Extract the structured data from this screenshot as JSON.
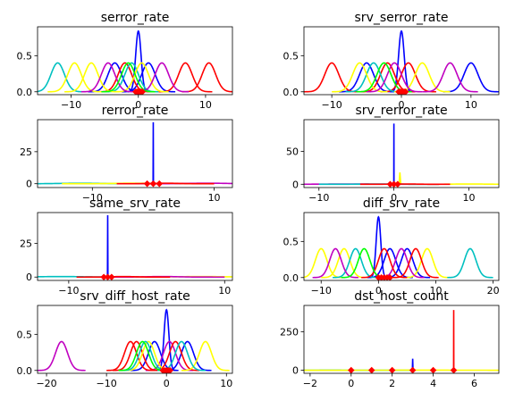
{
  "chart_data": [
    {
      "type": "line",
      "title": "serror_rate",
      "xlim": [
        -15,
        14
      ],
      "ylim": [
        -0.04,
        0.9
      ],
      "xticks": [
        -10,
        0,
        10
      ],
      "yticks": [
        0.0,
        0.5
      ],
      "xtick_labels": [
        "−10",
        "0",
        "10"
      ],
      "ytick_labels": [
        "0.0",
        "0.5"
      ],
      "series": [
        {
          "color": "#0000ff",
          "peaks": [
            {
              "mu": 0.0,
              "sigma": 0.4,
              "amp": 0.84
            },
            {
              "mu": -3.5,
              "sigma": 1.0,
              "amp": 0.4
            },
            {
              "mu": 1.5,
              "sigma": 1.0,
              "amp": 0.4
            }
          ]
        },
        {
          "color": "#ff0000",
          "peaks": [
            {
              "mu": 10.5,
              "sigma": 1.0,
              "amp": 0.4
            },
            {
              "mu": 7.0,
              "sigma": 1.0,
              "amp": 0.4
            },
            {
              "mu": -2.0,
              "sigma": 1.0,
              "amp": 0.4
            }
          ]
        },
        {
          "color": "#00c0c0",
          "peaks": [
            {
              "mu": -12.0,
              "sigma": 1.0,
              "amp": 0.4
            },
            {
              "mu": -1.0,
              "sigma": 1.0,
              "amp": 0.4
            }
          ]
        },
        {
          "color": "#ffff00",
          "peaks": [
            {
              "mu": -9.5,
              "sigma": 1.0,
              "amp": 0.4
            },
            {
              "mu": -7.0,
              "sigma": 1.0,
              "amp": 0.4
            },
            {
              "mu": 0.5,
              "sigma": 1.0,
              "amp": 0.4
            }
          ]
        },
        {
          "color": "#c000c0",
          "peaks": [
            {
              "mu": -4.5,
              "sigma": 1.0,
              "amp": 0.4
            },
            {
              "mu": 3.5,
              "sigma": 1.0,
              "amp": 0.4
            }
          ]
        },
        {
          "color": "#00ff00",
          "peaks": [
            {
              "mu": -1.5,
              "sigma": 1.0,
              "amp": 0.4
            }
          ]
        }
      ],
      "markers": [
        {
          "color": "#ff0000",
          "x": [
            -0.4,
            -0.2,
            0.0,
            0.2,
            0.4,
            0.6
          ],
          "y": 0.0
        }
      ]
    },
    {
      "type": "line",
      "title": "srv_serror_rate",
      "xlim": [
        -14,
        14
      ],
      "ylim": [
        -0.04,
        0.9
      ],
      "xticks": [
        -10,
        0,
        10
      ],
      "yticks": [
        0.0,
        0.5
      ],
      "xtick_labels": [
        "−10",
        "0",
        "10"
      ],
      "ytick_labels": [
        "0.0",
        "0.5"
      ],
      "series": [
        {
          "color": "#0000ff",
          "peaks": [
            {
              "mu": 0.0,
              "sigma": 0.4,
              "amp": 0.84
            },
            {
              "mu": 10.0,
              "sigma": 1.0,
              "amp": 0.4
            },
            {
              "mu": -5.0,
              "sigma": 1.0,
              "amp": 0.4
            }
          ]
        },
        {
          "color": "#ff0000",
          "peaks": [
            {
              "mu": -10.0,
              "sigma": 1.0,
              "amp": 0.4
            },
            {
              "mu": -2.0,
              "sigma": 1.0,
              "amp": 0.4
            },
            {
              "mu": 1.0,
              "sigma": 1.0,
              "amp": 0.4
            }
          ]
        },
        {
          "color": "#00c0c0",
          "peaks": [
            {
              "mu": -4.0,
              "sigma": 1.0,
              "amp": 0.4
            }
          ]
        },
        {
          "color": "#ffff00",
          "peaks": [
            {
              "mu": -6.0,
              "sigma": 1.0,
              "amp": 0.4
            },
            {
              "mu": 3.0,
              "sigma": 1.0,
              "amp": 0.4
            }
          ]
        },
        {
          "color": "#c000c0",
          "peaks": [
            {
              "mu": 7.0,
              "sigma": 1.0,
              "amp": 0.4
            },
            {
              "mu": -1.0,
              "sigma": 1.0,
              "amp": 0.4
            }
          ]
        },
        {
          "color": "#00ff00",
          "peaks": [
            {
              "mu": -2.5,
              "sigma": 1.0,
              "amp": 0.4
            }
          ]
        }
      ],
      "markers": [
        {
          "color": "#ff0000",
          "x": [
            -0.4,
            -0.2,
            0.0,
            0.2,
            0.4,
            0.6
          ],
          "y": 0.0
        }
      ]
    },
    {
      "type": "line",
      "title": "rerror_rate",
      "xlim": [
        -19,
        13
      ],
      "ylim": [
        -3,
        50
      ],
      "xticks": [
        -10,
        10
      ],
      "yticks": [
        0,
        25
      ],
      "xtick_labels": [
        "−10",
        "10"
      ],
      "ytick_labels": [
        "0",
        "25"
      ],
      "series": [
        {
          "color": "#0000ff",
          "peaks": [
            {
              "mu": 0.0,
              "sigma": 0.008,
              "amp": 48
            }
          ]
        },
        {
          "color": "#00c0c0",
          "peaks": [
            {
              "mu": -12.0,
              "sigma": 3.0,
              "amp": 0.4
            }
          ]
        },
        {
          "color": "#ffff00",
          "peaks": [
            {
              "mu": -3.0,
              "sigma": 3.0,
              "amp": 0.4
            }
          ]
        },
        {
          "color": "#c000c0",
          "peaks": [
            {
              "mu": 9.0,
              "sigma": 3.0,
              "amp": 0.4
            }
          ]
        },
        {
          "color": "#ff0000",
          "peaks": [
            {
              "mu": 2.0,
              "sigma": 2.0,
              "amp": 0.4
            }
          ]
        }
      ],
      "markers": [
        {
          "color": "#ff0000",
          "x": [
            -1.0,
            0.0,
            1.0
          ],
          "y": 0.0
        }
      ]
    },
    {
      "type": "line",
      "title": "srv_rerror_rate",
      "xlim": [
        -12,
        14
      ],
      "ylim": [
        -5,
        98
      ],
      "xticks": [
        -10,
        0,
        10
      ],
      "yticks": [
        0,
        50
      ],
      "xtick_labels": [
        "−10",
        "0",
        "10"
      ],
      "ytick_labels": [
        "0",
        "50"
      ],
      "series": [
        {
          "color": "#0000ff",
          "peaks": [
            {
              "mu": 0.0,
              "sigma": 0.004,
              "amp": 92
            }
          ]
        },
        {
          "color": "#ffff00",
          "peaks": [
            {
              "mu": 0.8,
              "sigma": 0.03,
              "amp": 18
            },
            {
              "mu": 10.0,
              "sigma": 2.0,
              "amp": 0.4
            }
          ]
        },
        {
          "color": "#c000c0",
          "peaks": [
            {
              "mu": -6.0,
              "sigma": 3.0,
              "amp": 0.4
            }
          ]
        },
        {
          "color": "#00c0c0",
          "peaks": [
            {
              "mu": -2.0,
              "sigma": 2.0,
              "amp": 0.4
            }
          ]
        },
        {
          "color": "#ff0000",
          "peaks": [
            {
              "mu": 1.5,
              "sigma": 1.5,
              "amp": 0.4
            }
          ]
        }
      ],
      "markers": [
        {
          "color": "#ff0000",
          "x": [
            -0.5,
            0.0,
            0.5
          ],
          "y": 0.0
        }
      ]
    },
    {
      "type": "line",
      "title": "same_srv_rate",
      "xlim": [
        -14,
        11
      ],
      "ylim": [
        -2.5,
        48
      ],
      "xticks": [
        -10,
        10
      ],
      "yticks": [
        0,
        25
      ],
      "xtick_labels": [
        "−10",
        "10"
      ],
      "ytick_labels": [
        "0",
        "25"
      ],
      "series": [
        {
          "color": "#0000ff",
          "peaks": [
            {
              "mu": -5.0,
              "sigma": 0.008,
              "amp": 46
            }
          ]
        },
        {
          "color": "#00c0c0",
          "peaks": [
            {
              "mu": -11.0,
              "sigma": 3.0,
              "amp": 0.4
            }
          ]
        },
        {
          "color": "#ffff00",
          "peaks": [
            {
              "mu": 7.0,
              "sigma": 3.0,
              "amp": 0.4
            }
          ]
        },
        {
          "color": "#c000c0",
          "peaks": [
            {
              "mu": 2.0,
              "sigma": 2.0,
              "amp": 0.4
            }
          ]
        },
        {
          "color": "#ff0000",
          "peaks": [
            {
              "mu": -3.0,
              "sigma": 1.5,
              "amp": 0.4
            }
          ]
        }
      ],
      "markers": [
        {
          "color": "#ff0000",
          "x": [
            -5.5,
            -5.0,
            -4.5
          ],
          "y": 0.0
        }
      ]
    },
    {
      "type": "line",
      "title": "diff_srv_rate",
      "xlim": [
        -13,
        21
      ],
      "ylim": [
        -0.04,
        0.9
      ],
      "xticks": [
        -10,
        0,
        10,
        20
      ],
      "yticks": [
        0.0,
        0.5
      ],
      "xtick_labels": [
        "−10",
        "0",
        "10",
        "20"
      ],
      "ytick_labels": [
        "0.0",
        "0.5"
      ],
      "series": [
        {
          "color": "#0000ff",
          "peaks": [
            {
              "mu": 0.0,
              "sigma": 0.4,
              "amp": 0.84
            },
            {
              "mu": 2.0,
              "sigma": 1.0,
              "amp": 0.4
            },
            {
              "mu": 5.0,
              "sigma": 1.0,
              "amp": 0.4
            }
          ]
        },
        {
          "color": "#ffff00",
          "peaks": [
            {
              "mu": -10.0,
              "sigma": 1.0,
              "amp": 0.4
            },
            {
              "mu": -6.0,
              "sigma": 1.0,
              "amp": 0.4
            },
            {
              "mu": 8.5,
              "sigma": 1.0,
              "amp": 0.4
            }
          ]
        },
        {
          "color": "#00c0c0",
          "peaks": [
            {
              "mu": 16.0,
              "sigma": 1.0,
              "amp": 0.4
            },
            {
              "mu": -4.0,
              "sigma": 1.0,
              "amp": 0.4
            }
          ]
        },
        {
          "color": "#c000c0",
          "peaks": [
            {
              "mu": -7.5,
              "sigma": 1.0,
              "amp": 0.4
            },
            {
              "mu": 4.0,
              "sigma": 1.0,
              "amp": 0.4
            }
          ]
        },
        {
          "color": "#ff0000",
          "peaks": [
            {
              "mu": 1.0,
              "sigma": 1.0,
              "amp": 0.4
            },
            {
              "mu": 6.5,
              "sigma": 1.0,
              "amp": 0.4
            }
          ]
        },
        {
          "color": "#00ff00",
          "peaks": [
            {
              "mu": -2.5,
              "sigma": 1.0,
              "amp": 0.4
            }
          ]
        }
      ],
      "markers": [
        {
          "color": "#ff0000",
          "x": [
            0.0,
            0.5,
            1.0,
            1.5,
            2.0
          ],
          "y": 0.0
        }
      ]
    },
    {
      "type": "line",
      "title": "srv_diff_host_rate",
      "xlim": [
        -21.5,
        11
      ],
      "ylim": [
        -0.04,
        0.9
      ],
      "xticks": [
        -20,
        -10,
        0,
        10
      ],
      "yticks": [
        0.0,
        0.5
      ],
      "xtick_labels": [
        "−20",
        "−10",
        "0",
        "10"
      ],
      "ytick_labels": [
        "0.0",
        "0.5"
      ],
      "series": [
        {
          "color": "#0000ff",
          "peaks": [
            {
              "mu": 0.0,
              "sigma": 0.4,
              "amp": 0.84
            },
            {
              "mu": 3.5,
              "sigma": 1.0,
              "amp": 0.4
            },
            {
              "mu": -2.0,
              "sigma": 1.0,
              "amp": 0.4
            }
          ]
        },
        {
          "color": "#c000c0",
          "peaks": [
            {
              "mu": -17.5,
              "sigma": 1.0,
              "amp": 0.4
            },
            {
              "mu": 0.5,
              "sigma": 1.0,
              "amp": 0.4
            }
          ]
        },
        {
          "color": "#ff0000",
          "peaks": [
            {
              "mu": -6.0,
              "sigma": 1.0,
              "amp": 0.4
            },
            {
              "mu": -5.0,
              "sigma": 1.0,
              "amp": 0.4
            },
            {
              "mu": 1.5,
              "sigma": 1.0,
              "amp": 0.4
            }
          ]
        },
        {
          "color": "#ffff00",
          "peaks": [
            {
              "mu": 6.5,
              "sigma": 1.0,
              "amp": 0.4
            },
            {
              "mu": -3.0,
              "sigma": 1.0,
              "amp": 0.4
            }
          ]
        },
        {
          "color": "#00c0c0",
          "peaks": [
            {
              "mu": -3.5,
              "sigma": 1.0,
              "amp": 0.4
            },
            {
              "mu": 2.5,
              "sigma": 1.0,
              "amp": 0.4
            }
          ]
        },
        {
          "color": "#00ff00",
          "peaks": [
            {
              "mu": -4.0,
              "sigma": 1.0,
              "amp": 0.4
            }
          ]
        }
      ],
      "markers": [
        {
          "color": "#ff0000",
          "x": [
            -0.6,
            -0.3,
            0.0,
            0.3,
            0.6
          ],
          "y": 0.0
        }
      ]
    },
    {
      "type": "line",
      "title": "dst_host_count",
      "xlim": [
        -2.3,
        7.2
      ],
      "ylim": [
        -20,
        420
      ],
      "xticks": [
        -2,
        0,
        2,
        4,
        6
      ],
      "yticks": [
        0,
        250
      ],
      "xtick_labels": [
        "−2",
        "0",
        "2",
        "4",
        "6"
      ],
      "ytick_labels": [
        "0",
        "250"
      ],
      "series": [
        {
          "color": "#ff0000",
          "peaks": [
            {
              "mu": 5.0,
              "sigma": 0.0015,
              "amp": 390
            }
          ]
        },
        {
          "color": "#0000ff",
          "peaks": [
            {
              "mu": 3.0,
              "sigma": 0.004,
              "amp": 75
            }
          ]
        },
        {
          "color": "#00c0c0",
          "peaks": [
            {
              "mu": -1.0,
              "sigma": 1.0,
              "amp": 0.4
            }
          ]
        },
        {
          "color": "#ffff00",
          "peaks": [
            {
              "mu": 3.5,
              "sigma": 2.5,
              "amp": 0.4
            }
          ]
        }
      ],
      "markers": [
        {
          "color": "#ff0000",
          "x": [
            0,
            1,
            2,
            3,
            4,
            5
          ],
          "y": 0.0
        }
      ]
    }
  ]
}
